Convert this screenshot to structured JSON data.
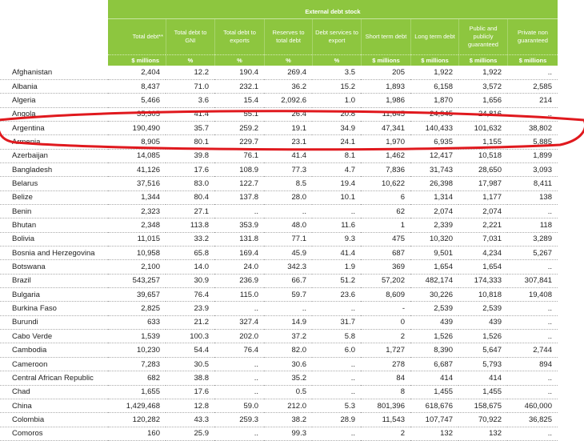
{
  "header": {
    "group": "External debt stock",
    "columns": [
      {
        "label": "Total debt**",
        "unit": "$ millions"
      },
      {
        "label": "Total debt to GNI",
        "unit": "%"
      },
      {
        "label": "Total debt to exports",
        "unit": "%"
      },
      {
        "label": "Reserves to total debt",
        "unit": "%"
      },
      {
        "label": "Debt services to export",
        "unit": "%"
      },
      {
        "label": "Short term debt",
        "unit": "$ millions"
      },
      {
        "label": "Long term debt",
        "unit": "$ millions"
      },
      {
        "label": "Public and publicly guaranteed",
        "unit": "$ millions"
      },
      {
        "label": "Private non guaranteed",
        "unit": "$ millions"
      }
    ]
  },
  "table": {
    "rows": [
      [
        "Afghanistan",
        "2,404",
        "12.2",
        "190.4",
        "269.4",
        "3.5",
        "205",
        "1,922",
        "1,922",
        ".."
      ],
      [
        "Albania",
        "8,437",
        "71.0",
        "232.1",
        "36.2",
        "15.2",
        "1,893",
        "6,158",
        "3,572",
        "2,585"
      ],
      [
        "Algeria",
        "5,466",
        "3.6",
        "15.4",
        "2,092.6",
        "1.0",
        "1,986",
        "1,870",
        "1,656",
        "214"
      ],
      [
        "Angola",
        "35,305",
        "41.4",
        "55.1",
        "26.4",
        "20.8",
        "11,645",
        "24,945",
        "24,816",
        ".."
      ],
      [
        "Argentina",
        "190,490",
        "35.7",
        "259.2",
        "19.1",
        "34.9",
        "47,341",
        "140,433",
        "101,632",
        "38,802"
      ],
      [
        "Armenia",
        "8,905",
        "80.1",
        "229.7",
        "23.1",
        "24.1",
        "1,970",
        "6,935",
        "1,155",
        "5,885"
      ],
      [
        "Azerbaijan",
        "14,085",
        "39.8",
        "76.1",
        "41.4",
        "8.1",
        "1,462",
        "12,417",
        "10,518",
        "1,899"
      ],
      [
        "Bangladesh",
        "41,126",
        "17.6",
        "108.9",
        "77.3",
        "4.7",
        "7,836",
        "31,743",
        "28,650",
        "3,093"
      ],
      [
        "Belarus",
        "37,516",
        "83.0",
        "122.7",
        "8.5",
        "19.4",
        "10,622",
        "26,398",
        "17,987",
        "8,411"
      ],
      [
        "Belize",
        "1,344",
        "80.4",
        "137.8",
        "28.0",
        "10.1",
        "6",
        "1,314",
        "1,177",
        "138"
      ],
      [
        "Benin",
        "2,323",
        "27.1",
        "..",
        "..",
        "..",
        "62",
        "2,074",
        "2,074",
        ".."
      ],
      [
        "Bhutan",
        "2,348",
        "113.8",
        "353.9",
        "48.0",
        "11.6",
        "1",
        "2,339",
        "2,221",
        "118"
      ],
      [
        "Bolivia",
        "11,015",
        "33.2",
        "131.8",
        "77.1",
        "9.3",
        "475",
        "10,320",
        "7,031",
        "3,289"
      ],
      [
        "Bosnia and Herzegovina",
        "10,958",
        "65.8",
        "169.4",
        "45.9",
        "41.4",
        "687",
        "9,501",
        "4,234",
        "5,267"
      ],
      [
        "Botswana",
        "2,100",
        "14.0",
        "24.0",
        "342.3",
        "1.9",
        "369",
        "1,654",
        "1,654",
        ".."
      ],
      [
        "Brazil",
        "543,257",
        "30.9",
        "236.9",
        "66.7",
        "51.2",
        "57,202",
        "482,174",
        "174,333",
        "307,841"
      ],
      [
        "Bulgaria",
        "39,657",
        "76.4",
        "115.0",
        "59.7",
        "23.6",
        "8,609",
        "30,226",
        "10,818",
        "19,408"
      ],
      [
        "Burkina Faso",
        "2,825",
        "23.9",
        "..",
        "..",
        "..",
        "-",
        "2,539",
        "2,539",
        ".."
      ],
      [
        "Burundi",
        "633",
        "21.2",
        "327.4",
        "14.9",
        "31.7",
        "0",
        "439",
        "439",
        ".."
      ],
      [
        "Cabo Verde",
        "1,539",
        "100.3",
        "202.0",
        "37.2",
        "5.8",
        "2",
        "1,526",
        "1,526",
        ".."
      ],
      [
        "Cambodia",
        "10,230",
        "54.4",
        "76.4",
        "82.0",
        "6.0",
        "1,727",
        "8,390",
        "5,647",
        "2,744"
      ],
      [
        "Cameroon",
        "7,283",
        "30.5",
        "..",
        "30.6",
        "..",
        "278",
        "6,687",
        "5,793",
        "894"
      ],
      [
        "Central African Republic",
        "682",
        "38.8",
        "..",
        "35.2",
        "..",
        "84",
        "414",
        "414",
        ".."
      ],
      [
        "Chad",
        "1,655",
        "17.6",
        "..",
        "0.5",
        "..",
        "8",
        "1,455",
        "1,455",
        ".."
      ],
      [
        "China",
        "1,429,468",
        "12.8",
        "59.0",
        "212.0",
        "5.3",
        "801,396",
        "618,676",
        "158,675",
        "460,000"
      ],
      [
        "Colombia",
        "120,282",
        "43.3",
        "259.3",
        "38.2",
        "28.9",
        "11,543",
        "107,747",
        "70,922",
        "36,825"
      ],
      [
        "Comoros",
        "160",
        "25.9",
        "..",
        "99.3",
        "..",
        "2",
        "132",
        "132",
        ".."
      ]
    ]
  }
}
